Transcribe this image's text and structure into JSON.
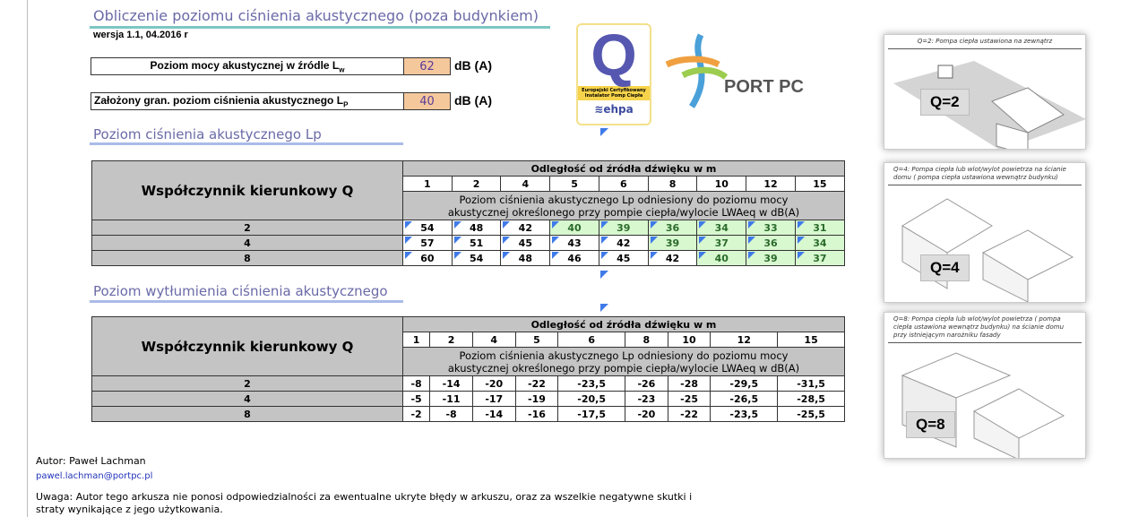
{
  "title": "Obliczenie poziomu ciśnienia akustycznego (poza budynkiem)",
  "version": "wersja 1.1, 04.2016 r",
  "inputs": [
    {
      "label": "Poziom mocy akustycznej w źródle Lw",
      "value": "62",
      "unit": "dB (A)"
    },
    {
      "label": "Założony gran. poziom ciśnienia akustycznego Lp",
      "value": "40",
      "unit": "dB (A)"
    }
  ],
  "logos": {
    "ehpa": "Q Europejski Certyfikowany Instalator Pomp Ciepła ehpa",
    "portpc": "PORT PC"
  },
  "colors": {
    "accent": "#6a6aa8",
    "input_bg": "#f5c89c",
    "ok_bg": "#d8f8d0",
    "header_bg": "#c4c4c4",
    "marker": "#3f7ae8"
  },
  "table1": {
    "heading": "Poziom ciśnienia akustycznego Lp",
    "q_label": "Współczynnik kierunkowy Q",
    "distance_label": "Odległość od źródła dźwięku w m",
    "distances": [
      "1",
      "2",
      "4",
      "5",
      "6",
      "8",
      "10",
      "12",
      "15"
    ],
    "description": "Poziom ciśnienia akustycznego Lp odniesiony do poziomu mocy akustycznej określonego przy pompie ciepła/wylocie LWAeq w dB(A)",
    "rows": [
      {
        "q": "2",
        "values": [
          "54",
          "48",
          "42",
          "40",
          "39",
          "36",
          "34",
          "33",
          "31"
        ]
      },
      {
        "q": "4",
        "values": [
          "57",
          "51",
          "45",
          "43",
          "42",
          "39",
          "37",
          "36",
          "34"
        ]
      },
      {
        "q": "8",
        "values": [
          "60",
          "54",
          "48",
          "46",
          "45",
          "42",
          "40",
          "39",
          "37"
        ]
      }
    ]
  },
  "table2": {
    "heading": "Poziom wytłumienia ciśnienia akustycznego",
    "q_label": "Współczynnik kierunkowy Q",
    "distance_label": "Odległość od źródła dźwięku w m",
    "distances": [
      "1",
      "2",
      "4",
      "5",
      "6",
      "8",
      "10",
      "12",
      "15"
    ],
    "description": "Poziom ciśnienia akustycznego Lp odniesiony do poziomu mocy akustycznej określonego przy pompie ciepła/wylocie LWAeq w dB(A)",
    "rows": [
      {
        "q": "2",
        "values": [
          "-8",
          "-14",
          "-20",
          "-22",
          "-23,5",
          "-26",
          "-28",
          "-29,5",
          "-31,5"
        ]
      },
      {
        "q": "4",
        "values": [
          "-5",
          "-11",
          "-17",
          "-19",
          "-20,5",
          "-23",
          "-25",
          "-26,5",
          "-28,5"
        ]
      },
      {
        "q": "8",
        "values": [
          "-2",
          "-8",
          "-14",
          "-16",
          "-17,5",
          "-20",
          "-22",
          "-23,5",
          "-25,5"
        ]
      }
    ]
  },
  "panels": [
    {
      "caption": "Q=2: Pompa ciepła ustawiona na zewnątrz",
      "label": "Q=2"
    },
    {
      "caption": "Q=4: Pompa ciepła lub wlot/wylot powietrza na ścianie domu ( pompa ciepła ustawiona wewnątrz budynku)",
      "label": "Q=4"
    },
    {
      "caption": "Q=8: Pompa ciepła lub wlot/wylot powietrza ( pompa ciepła ustawiona wewnątrz budynku) na ścianie domu przy istniejącym narożniku fasady",
      "label": "Q=8"
    }
  ],
  "footer": {
    "author": "Autor: Paweł Lachman",
    "email": "pawel.lachman@portpc.pl",
    "disclaimer": "Uwaga: Autor tego arkusza nie ponosi odpowiedzialności za ewentualne ukryte błędy w arkuszu,  oraz za wszelkie negatywne skutki i straty wynikające z jego użytkowania."
  }
}
